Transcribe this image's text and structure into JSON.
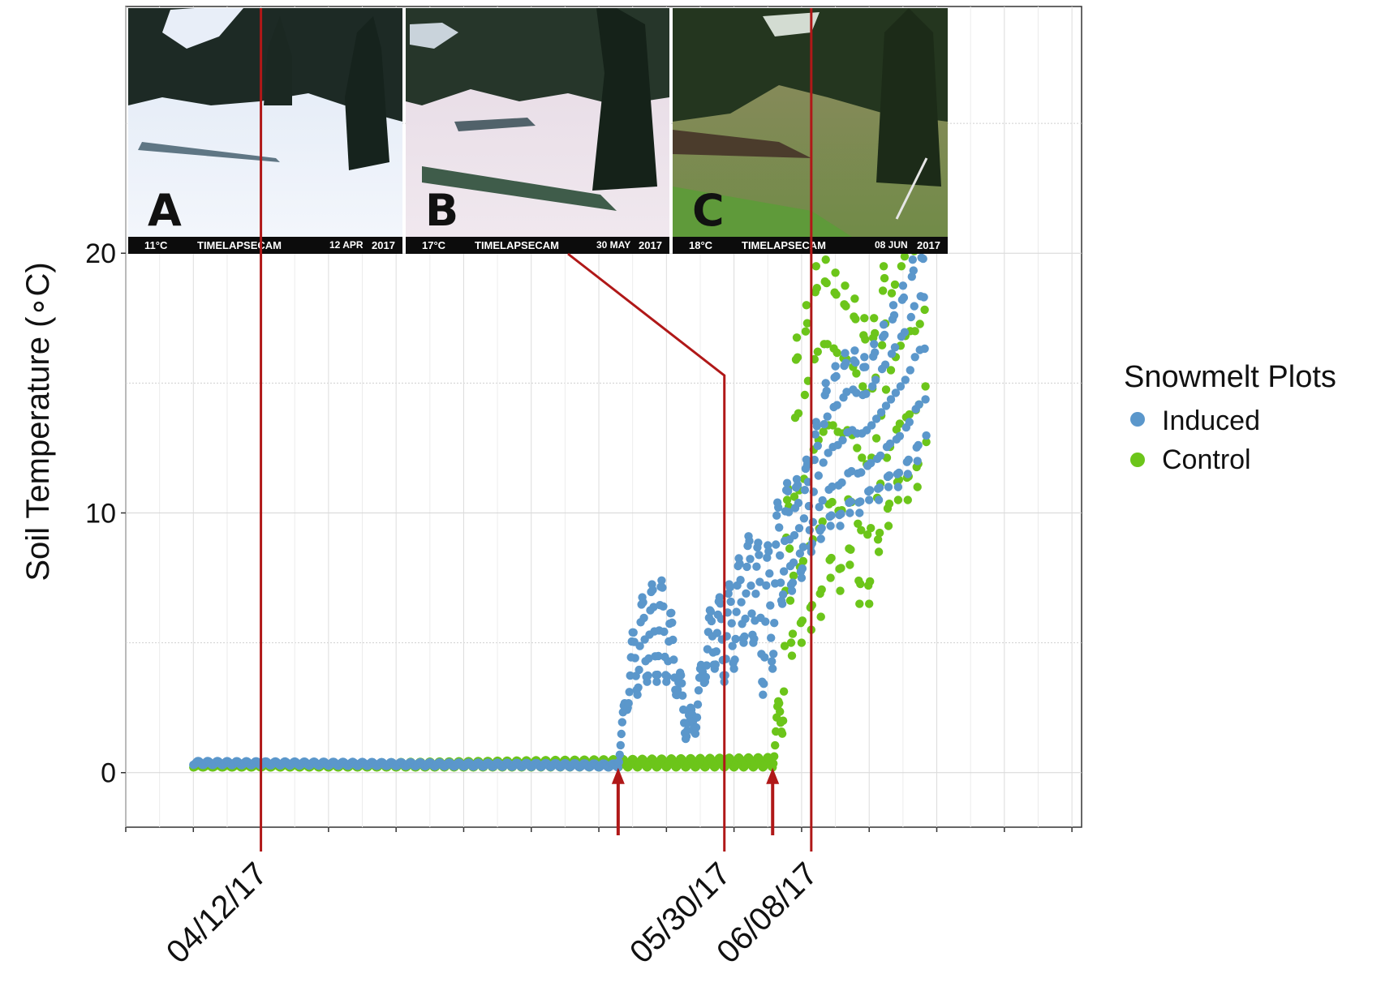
{
  "chart_data": {
    "type": "scatter",
    "title": "",
    "xlabel": "",
    "ylabel": "Soil Temperature (∘C)",
    "ylim": [
      -2.1,
      29.5
    ],
    "xlim": [
      "2017-03-29",
      "2017-07-06"
    ],
    "grid": true,
    "y_ticks": [
      0,
      10,
      20
    ],
    "x_tick_labels": [
      {
        "date": "2017-04-12",
        "label": "04/12/17"
      },
      {
        "date": "2017-05-30",
        "label": "05/30/17"
      },
      {
        "date": "2017-06-08",
        "label": "06/08/17"
      }
    ],
    "legend": {
      "title": "Snowmelt Plots",
      "placement": "right",
      "entries": [
        {
          "name": "Induced",
          "color": "#5b97cb"
        },
        {
          "name": "Control",
          "color": "#6cc51a"
        }
      ]
    },
    "snowmelt_markers": [
      "2017-05-19",
      "2017-06-04"
    ],
    "marker_color": "#b01818",
    "series": [
      {
        "name": "Induced",
        "color": "#5b97cb",
        "description_points": [
          {
            "date": "2017-04-05",
            "ymin": 0.3,
            "ymax": 0.45
          },
          {
            "date": "2017-05-19",
            "ymin": 0.2,
            "ymax": 0.35
          },
          {
            "date": "2017-05-20",
            "ymin": 2.5,
            "ymax": 4.3
          },
          {
            "date": "2017-05-21",
            "ymin": 3.0,
            "ymax": 6.5
          },
          {
            "date": "2017-05-22",
            "ymin": 3.5,
            "ymax": 7.0
          },
          {
            "date": "2017-05-23",
            "ymin": 3.5,
            "ymax": 7.5
          },
          {
            "date": "2017-05-24",
            "ymin": 3.5,
            "ymax": 7.3
          },
          {
            "date": "2017-05-25",
            "ymin": 3.0,
            "ymax": 5.0
          },
          {
            "date": "2017-05-26",
            "ymin": 1.3,
            "ymax": 2.5
          },
          {
            "date": "2017-05-27",
            "ymin": 1.5,
            "ymax": 2.5
          },
          {
            "date": "2017-05-28",
            "ymin": 3.5,
            "ymax": 5.5
          },
          {
            "date": "2017-05-29",
            "ymin": 4.0,
            "ymax": 7.0
          },
          {
            "date": "2017-05-30",
            "ymin": 3.5,
            "ymax": 6.5
          },
          {
            "date": "2017-05-31",
            "ymin": 4.0,
            "ymax": 8.0
          },
          {
            "date": "2017-06-01",
            "ymin": 5.0,
            "ymax": 8.5
          },
          {
            "date": "2017-06-02",
            "ymin": 5.0,
            "ymax": 9.7
          },
          {
            "date": "2017-06-03",
            "ymin": 3.0,
            "ymax": 8.0
          },
          {
            "date": "2017-06-04",
            "ymin": 4.0,
            "ymax": 9.5
          },
          {
            "date": "2017-06-05",
            "ymin": 6.5,
            "ymax": 11.3
          },
          {
            "date": "2017-06-06",
            "ymin": 7.0,
            "ymax": 11.0
          },
          {
            "date": "2017-06-07",
            "ymin": 7.5,
            "ymax": 11.6
          },
          {
            "date": "2017-06-08",
            "ymin": 8.5,
            "ymax": 12.5
          },
          {
            "date": "2017-06-09",
            "ymin": 9.0,
            "ymax": 14.5
          },
          {
            "date": "2017-06-10",
            "ymin": 9.5,
            "ymax": 15.5
          },
          {
            "date": "2017-06-11",
            "ymin": 9.5,
            "ymax": 15.8
          },
          {
            "date": "2017-06-12",
            "ymin": 10.0,
            "ymax": 16.5
          },
          {
            "date": "2017-06-13",
            "ymin": 10.0,
            "ymax": 16.0
          },
          {
            "date": "2017-06-14",
            "ymin": 10.5,
            "ymax": 16.0
          },
          {
            "date": "2017-06-15",
            "ymin": 10.5,
            "ymax": 17.0
          },
          {
            "date": "2017-06-16",
            "ymin": 11.0,
            "ymax": 17.5
          },
          {
            "date": "2017-06-17",
            "ymin": 11.0,
            "ymax": 18.5
          },
          {
            "date": "2017-06-18",
            "ymin": 11.5,
            "ymax": 19.0
          },
          {
            "date": "2017-06-19",
            "ymin": 12.0,
            "ymax": 20.5
          },
          {
            "date": "2017-06-20",
            "ymin": 12.5,
            "ymax": 20.2
          }
        ]
      },
      {
        "name": "Control",
        "color": "#6cc51a",
        "description_points": [
          {
            "date": "2017-04-05",
            "ymin": 0.2,
            "ymax": 0.3
          },
          {
            "date": "2017-06-04",
            "ymin": 0.2,
            "ymax": 0.6
          },
          {
            "date": "2017-06-05",
            "ymin": 1.5,
            "ymax": 4.5
          },
          {
            "date": "2017-06-06",
            "ymin": 4.5,
            "ymax": 16.5
          },
          {
            "date": "2017-06-07",
            "ymin": 5.0,
            "ymax": 17.0
          },
          {
            "date": "2017-06-08",
            "ymin": 5.5,
            "ymax": 19.0
          },
          {
            "date": "2017-06-09",
            "ymin": 6.0,
            "ymax": 20.0
          },
          {
            "date": "2017-06-10",
            "ymin": 7.5,
            "ymax": 19.5
          },
          {
            "date": "2017-06-11",
            "ymin": 7.0,
            "ymax": 19.0
          },
          {
            "date": "2017-06-12",
            "ymin": 8.0,
            "ymax": 18.5
          },
          {
            "date": "2017-06-13",
            "ymin": 6.5,
            "ymax": 18.0
          },
          {
            "date": "2017-06-14",
            "ymin": 6.5,
            "ymax": 17.0
          },
          {
            "date": "2017-06-15",
            "ymin": 8.5,
            "ymax": 18.0
          },
          {
            "date": "2017-06-16",
            "ymin": 9.5,
            "ymax": 21.0
          },
          {
            "date": "2017-06-17",
            "ymin": 10.5,
            "ymax": 22.0
          },
          {
            "date": "2017-06-18",
            "ymin": 10.5,
            "ymax": 23.5
          },
          {
            "date": "2017-06-19",
            "ymin": 11.0,
            "ymax": 23.0
          },
          {
            "date": "2017-06-20",
            "ymin": 12.0,
            "ymax": 24.2
          }
        ]
      }
    ]
  },
  "photos": [
    {
      "letter": "A",
      "temp": "11°C",
      "brand": "TIMELAPSECAM",
      "date": "12 APR",
      "year": "2017",
      "date_value": "2017-04-12",
      "leader": "straight"
    },
    {
      "letter": "B",
      "temp": "17°C",
      "brand": "TIMELAPSECAM",
      "date": "30 MAY",
      "year": "2017",
      "date_value": "2017-05-30",
      "leader": "bent"
    },
    {
      "letter": "C",
      "temp": "18°C",
      "brand": "TIMELAPSECAM",
      "date": "08 JUN",
      "year": "2017",
      "date_value": "2017-06-08",
      "leader": "straight"
    }
  ]
}
